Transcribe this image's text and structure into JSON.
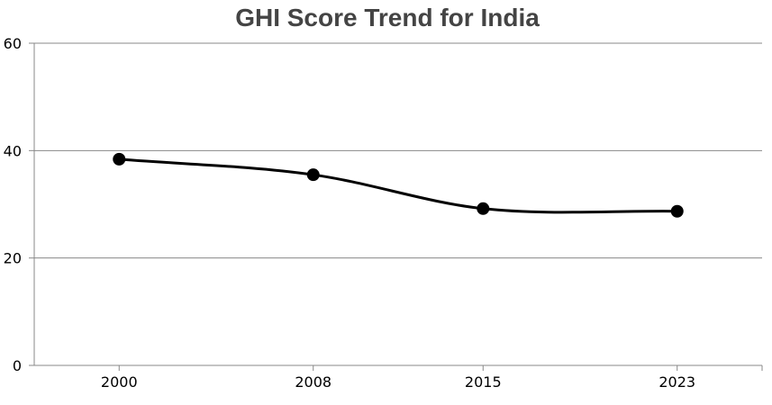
{
  "chart_data": {
    "type": "line",
    "title": "GHI Score Trend for India",
    "xlabel": "",
    "ylabel": "",
    "x": [
      2000,
      2008,
      2015,
      2023
    ],
    "xticks": [
      "2000",
      "2008",
      "2015",
      "2023"
    ],
    "xlim": [
      1996.5,
      2026.5
    ],
    "ylim": [
      0,
      60
    ],
    "yticks": [
      "0",
      "20",
      "40",
      "60"
    ],
    "series": [
      {
        "values": [
          38.4,
          35.5,
          29.2,
          28.7
        ],
        "color": "#000000"
      }
    ],
    "grid": "horizontal",
    "smooth": true,
    "markers": true
  }
}
